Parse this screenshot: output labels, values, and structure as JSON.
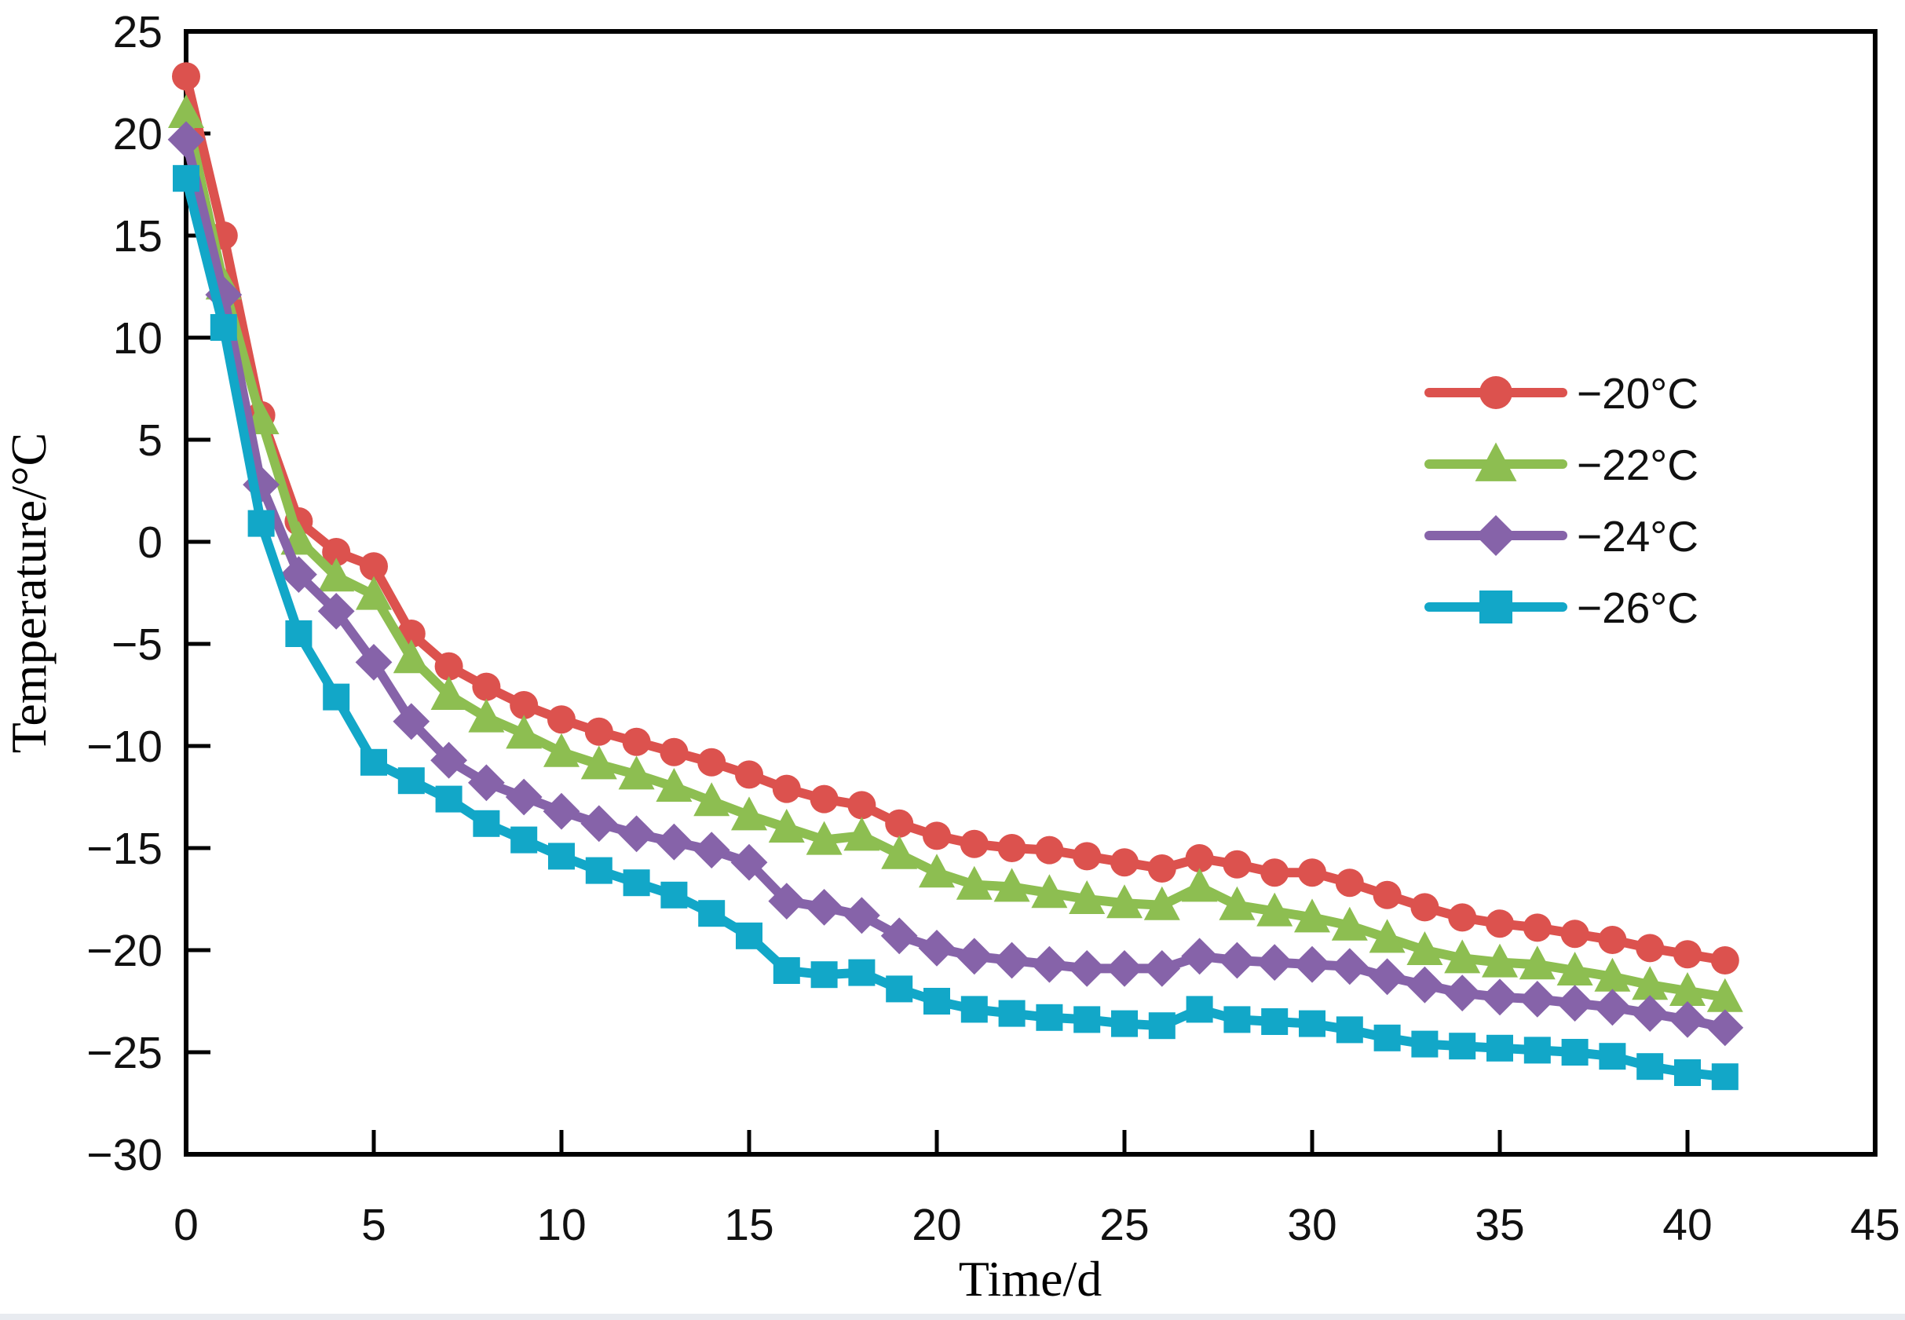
{
  "figure": {
    "background": "#ffffff",
    "bottom_strip_color": "#e8ebf0"
  },
  "chart_data": {
    "type": "line",
    "title": "",
    "xlabel": "Time/d",
    "ylabel": "Temperature/°C",
    "xlim": [
      0,
      45
    ],
    "ylim": [
      -30,
      25
    ],
    "grid": false,
    "legend_position": "inside upper right",
    "x_tick_labels": [
      "0",
      "5",
      "10",
      "15",
      "20",
      "25",
      "30",
      "35",
      "40",
      "45"
    ],
    "x_tick_values": [
      0,
      5,
      10,
      15,
      20,
      25,
      30,
      35,
      40,
      45
    ],
    "y_tick_labels": [
      "25",
      "20",
      "15",
      "10",
      "5",
      "0",
      "−5",
      "−10",
      "−15",
      "−20",
      "−25",
      "−30"
    ],
    "y_tick_values": [
      25,
      20,
      15,
      10,
      5,
      0,
      -5,
      -10,
      -15,
      -20,
      -25,
      -30
    ],
    "x": [
      0,
      1,
      2,
      3,
      4,
      5,
      6,
      7,
      8,
      9,
      10,
      11,
      12,
      13,
      14,
      15,
      16,
      17,
      18,
      19,
      20,
      21,
      22,
      23,
      24,
      25,
      26,
      27,
      28,
      29,
      30,
      31,
      32,
      33,
      34,
      35,
      36,
      37,
      38,
      39,
      40,
      41
    ],
    "series": [
      {
        "name": "−20°C",
        "color": "#DC524E",
        "marker": "circle",
        "values": [
          22.8,
          15.0,
          6.2,
          1.0,
          -0.5,
          -1.2,
          -4.5,
          -6.1,
          -7.1,
          -8.0,
          -8.7,
          -9.3,
          -9.8,
          -10.3,
          -10.8,
          -11.4,
          -12.1,
          -12.6,
          -12.9,
          -13.8,
          -14.4,
          -14.8,
          -15.0,
          -15.1,
          -15.4,
          -15.7,
          -16.0,
          -15.5,
          -15.8,
          -16.2,
          -16.2,
          -16.7,
          -17.3,
          -17.9,
          -18.4,
          -18.7,
          -18.9,
          -19.2,
          -19.5,
          -19.9,
          -20.2,
          -20.5
        ]
      },
      {
        "name": "−22°C",
        "color": "#8DBE51",
        "marker": "triangle",
        "values": [
          21.0,
          12.6,
          6.0,
          0.1,
          -1.7,
          -2.6,
          -5.7,
          -7.5,
          -8.6,
          -9.4,
          -10.3,
          -10.9,
          -11.4,
          -12.0,
          -12.7,
          -13.4,
          -14.0,
          -14.6,
          -14.4,
          -15.3,
          -16.2,
          -16.8,
          -16.9,
          -17.2,
          -17.5,
          -17.7,
          -17.8,
          -16.9,
          -17.8,
          -18.1,
          -18.4,
          -18.8,
          -19.4,
          -20.0,
          -20.4,
          -20.6,
          -20.7,
          -21.0,
          -21.3,
          -21.7,
          -22.0,
          -22.3
        ]
      },
      {
        "name": "−24°C",
        "color": "#8663A9",
        "marker": "diamond",
        "values": [
          19.7,
          12.1,
          2.8,
          -1.6,
          -3.4,
          -5.9,
          -8.8,
          -10.7,
          -11.8,
          -12.5,
          -13.2,
          -13.8,
          -14.3,
          -14.7,
          -15.1,
          -15.7,
          -17.6,
          -17.9,
          -18.3,
          -19.3,
          -19.9,
          -20.3,
          -20.5,
          -20.7,
          -20.9,
          -20.9,
          -20.9,
          -20.3,
          -20.5,
          -20.6,
          -20.7,
          -20.8,
          -21.3,
          -21.7,
          -22.1,
          -22.3,
          -22.4,
          -22.6,
          -22.8,
          -23.1,
          -23.4,
          -23.8
        ]
      },
      {
        "name": "−26°C",
        "color": "#12A7C8",
        "marker": "square",
        "values": [
          17.8,
          10.5,
          0.9,
          -4.5,
          -7.6,
          -10.8,
          -11.7,
          -12.6,
          -13.8,
          -14.6,
          -15.4,
          -16.1,
          -16.7,
          -17.3,
          -18.2,
          -19.3,
          -21.0,
          -21.2,
          -21.1,
          -21.9,
          -22.5,
          -22.9,
          -23.1,
          -23.3,
          -23.4,
          -23.6,
          -23.7,
          -22.9,
          -23.4,
          -23.5,
          -23.6,
          -23.9,
          -24.3,
          -24.6,
          -24.7,
          -24.8,
          -24.9,
          -25.0,
          -25.2,
          -25.7,
          -26.0,
          -26.2
        ]
      }
    ]
  }
}
